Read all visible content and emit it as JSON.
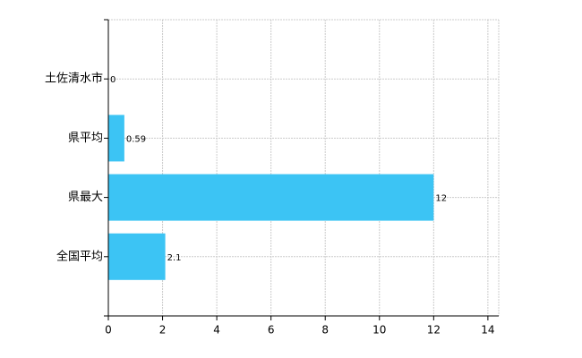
{
  "chart_data": {
    "type": "bar",
    "orientation": "horizontal",
    "categories": [
      "土佐清水市",
      "県平均",
      "県最大",
      "全国平均"
    ],
    "values": [
      0,
      0.59,
      12,
      2.1
    ],
    "color": "#3cc4f4",
    "xlim": [
      0,
      14.4
    ],
    "xticks": [
      0,
      2,
      4,
      6,
      8,
      10,
      12,
      14
    ],
    "grid": true
  }
}
